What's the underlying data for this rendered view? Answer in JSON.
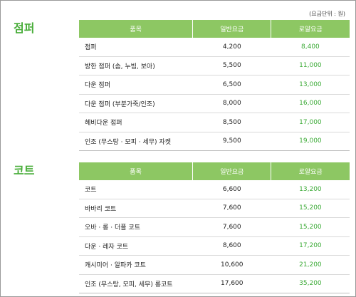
{
  "unit_note": "(요금단위 : 원)",
  "sections": [
    {
      "title": "점퍼",
      "header": [
        "품목",
        "일반요금",
        "로얄요금"
      ],
      "rows": [
        [
          "점퍼",
          "4,200",
          "8,400"
        ],
        [
          "방한 점퍼 (솜, 누빔, 보아)",
          "5,500",
          "11,000"
        ],
        [
          "다운 점퍼",
          "6,500",
          "13,000"
        ],
        [
          "다운 점퍼 (부분가죽/인조)",
          "8,000",
          "16,000"
        ],
        [
          "헤비다운 점퍼",
          "8,500",
          "17,000"
        ],
        [
          "인조 (무스탕 · 모피 · 세무) 자켓",
          "9,500",
          "19,000"
        ]
      ]
    },
    {
      "title": "코트",
      "header": [
        "품목",
        "일반요금",
        "로얄요금"
      ],
      "rows": [
        [
          "코트",
          "6,600",
          "13,200"
        ],
        [
          "바바리 코트",
          "7,600",
          "15,200"
        ],
        [
          "오바 · 롱 · 더플 코트",
          "7,600",
          "15,200"
        ],
        [
          "다운 · 레자 코트",
          "8,600",
          "17,200"
        ],
        [
          "캐시미어 · 알파카 코트",
          "10,600",
          "21,200"
        ],
        [
          "인조 (무스탕, 모피, 세무) 롱코트",
          "17,600",
          "35,200"
        ]
      ]
    }
  ]
}
